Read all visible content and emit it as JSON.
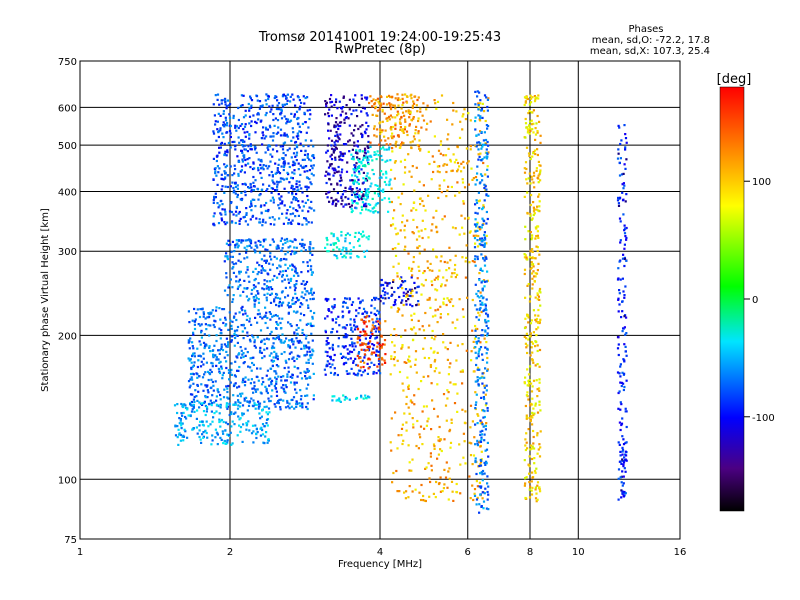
{
  "chart_data": {
    "type": "scatter",
    "title": "Tromsø 20141001  19:24:00-19:25:43",
    "subtitle": "RwPretec (8p)",
    "xlabel": "Frequency [MHz]",
    "ylabel": "Stationary phase Virtual Height [km]",
    "x_scale": "log",
    "y_scale": "log",
    "xlim": [
      1,
      16
    ],
    "ylim": [
      75,
      750
    ],
    "x_ticks": [
      1,
      2,
      4,
      6,
      8,
      10,
      16
    ],
    "y_ticks": [
      75,
      100,
      200,
      300,
      400,
      500,
      600,
      750
    ],
    "grid": true,
    "phase_stats": {
      "heading": "Phases",
      "line1": "mean, sd,O: -72.2, 17.8",
      "line2": "mean, sd,X: 107.3, 25.4"
    },
    "colorbar": {
      "label": "[deg]",
      "ticks": [
        -100,
        0,
        100
      ],
      "range": [
        -180,
        180
      ],
      "colormap": "rainbow"
    },
    "clusters": [
      {
        "f": [
          1.85,
          2.95
        ],
        "h": [
          340,
          520
        ],
        "phase": -115
      },
      {
        "f": [
          1.85,
          2.9
        ],
        "h": [
          520,
          640
        ],
        "phase": -115
      },
      {
        "f": [
          1.95,
          2.95
        ],
        "h": [
          230,
          320
        ],
        "phase": -105
      },
      {
        "f": [
          1.65,
          2.95
        ],
        "h": [
          140,
          230
        ],
        "phase": -105
      },
      {
        "f": [
          1.55,
          2.4
        ],
        "h": [
          118,
          145
        ],
        "phase": -85
      },
      {
        "f": [
          3.1,
          3.8
        ],
        "h": [
          370,
          640
        ],
        "phase": -150
      },
      {
        "f": [
          3.5,
          4.2
        ],
        "h": [
          360,
          500
        ],
        "phase": -60
      },
      {
        "f": [
          3.8,
          4.8
        ],
        "h": [
          500,
          640
        ],
        "phase": 130
      },
      {
        "f": [
          3.1,
          3.8
        ],
        "h": [
          290,
          330
        ],
        "phase": -60
      },
      {
        "f": [
          3.1,
          4.0
        ],
        "h": [
          165,
          240
        ],
        "phase": -125
      },
      {
        "f": [
          3.6,
          4.1
        ],
        "h": [
          170,
          220
        ],
        "phase": 155
      },
      {
        "f": [
          3.2,
          3.9
        ],
        "h": [
          145,
          150
        ],
        "phase": -70
      },
      {
        "f": [
          4.0,
          4.8
        ],
        "h": [
          230,
          265
        ],
        "phase": -140
      },
      {
        "f": [
          4.2,
          6.6
        ],
        "h": [
          90,
          640
        ],
        "phase": 120
      },
      {
        "f": [
          6.2,
          6.6
        ],
        "h": [
          85,
          650
        ],
        "phase": -100
      },
      {
        "f": [
          7.8,
          8.4
        ],
        "h": [
          90,
          640
        ],
        "phase": 110
      },
      {
        "f": [
          12.0,
          12.5
        ],
        "h": [
          90,
          560
        ],
        "phase": -130
      }
    ]
  }
}
